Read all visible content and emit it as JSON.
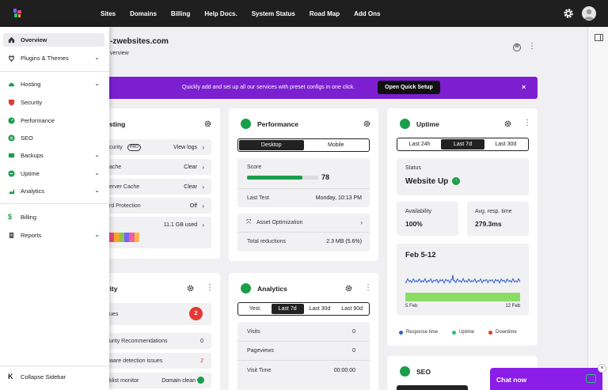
{
  "topbar": {
    "nav": [
      "Sites",
      "Domains",
      "Billing",
      "Help Docs.",
      "System Status",
      "Road Map",
      "Add Ons"
    ]
  },
  "site": {
    "name": "-zwebsites.com",
    "subtitle": "verview"
  },
  "banner": {
    "text": "Quickly add and set up all our services with preset configs in one click.",
    "button": "Open Quick Setup",
    "close": "×"
  },
  "hosting": {
    "title": "sting",
    "security_label": "curity",
    "pro_badge": "PRO",
    "security_action": "View logs",
    "cache_label": "ache",
    "cache_action": "Clear",
    "server_cache_label": "erver Cache",
    "server_cache_action": "Clear",
    "protection_label": "rd Protection",
    "protection_value": "Off",
    "storage_value": "11.1 GB used",
    "storage_segments": [
      "#e84a7f",
      "#f5a623",
      "#8bc34a",
      "#7b61ff",
      "#f06292",
      "#ffb74d"
    ]
  },
  "security": {
    "title": "urity",
    "issues_label": "ues",
    "issues_count": "2",
    "recommendations_label": "urity Recommendations",
    "recommendations_value": "0",
    "malware_label": "ware detection issues",
    "malware_value": "2",
    "blacklist_label": "klist monitor",
    "blacklist_value": "Domain clean"
  },
  "performance": {
    "title": "Performance",
    "tabs": [
      "Desktop",
      "Mobile"
    ],
    "score_label": "Score",
    "score_value": "78",
    "score_fraction": 0.78,
    "last_test_label": "Last Test",
    "last_test_value": "Monday, 10:13 PM",
    "asset_label": "Asset Optimization",
    "reductions_label": "Total reductions",
    "reductions_value": "2.3 MB (5.6%)"
  },
  "analytics": {
    "title": "Analytics",
    "tabs": [
      "Yest.",
      "Last 7d",
      "Last 30d",
      "Last 90d"
    ],
    "visits_label": "Visits",
    "visits_value": "0",
    "pageviews_label": "Pageviews",
    "pageviews_value": "0",
    "visit_time_label": "Visit Time",
    "visit_time_value": "00:00:00"
  },
  "uptime": {
    "title": "Uptime",
    "tabs": [
      "Last 24h",
      "Last 7d",
      "Last 30d"
    ],
    "status_label": "Status",
    "status_value": "Website Up",
    "availability_label": "Availability",
    "availability_value": "100%",
    "response_label": "Avg. resp. time",
    "response_value": "279.3ms",
    "range": "Feb 5-12",
    "start": "5 Feb",
    "end": "12 Feb",
    "legend": [
      "Response time",
      "Uptime",
      "Downtime"
    ]
  },
  "seo": {
    "title": "SEO"
  },
  "sidebar": {
    "items": [
      {
        "label": "Overview"
      },
      {
        "label": "Plugins & Themes"
      },
      {
        "label": "Hosting"
      },
      {
        "label": "Security"
      },
      {
        "label": "Performance"
      },
      {
        "label": "SEO"
      },
      {
        "label": "Backups"
      },
      {
        "label": "Uptime"
      },
      {
        "label": "Analytics"
      },
      {
        "label": "Billing"
      },
      {
        "label": "Reports"
      }
    ],
    "collapse": "Collapse Sidebar"
  },
  "chat": {
    "label": "Chat now",
    "close": "×"
  },
  "colors": {
    "accent": "#7b1fd1",
    "green": "#1a9e4a",
    "red": "#e53935",
    "blue": "#2f5fd0"
  }
}
